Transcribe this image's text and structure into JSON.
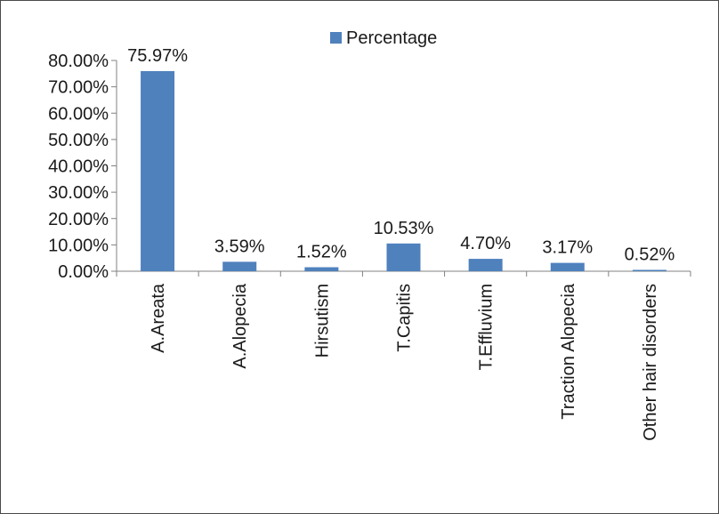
{
  "colors": {
    "bar": "#4F81BD",
    "axis": "#808080",
    "text": "#1a1a1a"
  },
  "chart_data": {
    "type": "bar",
    "title": "",
    "xlabel": "",
    "ylabel": "",
    "categories": [
      "A.Areata",
      "A.Alopecia",
      "Hirsutism",
      "T.Capitis",
      "T.Effluvium",
      "Traction Alopecia",
      "Other hair disorders"
    ],
    "series": [
      {
        "name": "Percentage",
        "values": [
          75.97,
          3.59,
          1.52,
          10.53,
          4.7,
          3.17,
          0.52
        ]
      }
    ],
    "data_labels": [
      "75.97%",
      "3.59%",
      "1.52%",
      "10.53%",
      "4.70%",
      "3.17%",
      "0.52%"
    ],
    "ylim": [
      0,
      80
    ],
    "yticks": [
      0,
      10,
      20,
      30,
      40,
      50,
      60,
      70,
      80
    ],
    "ytick_labels": [
      "0.00%",
      "10.00%",
      "20.00%",
      "30.00%",
      "40.00%",
      "50.00%",
      "60.00%",
      "70.00%",
      "80.00%"
    ],
    "grid": false,
    "legend_position": "top"
  }
}
